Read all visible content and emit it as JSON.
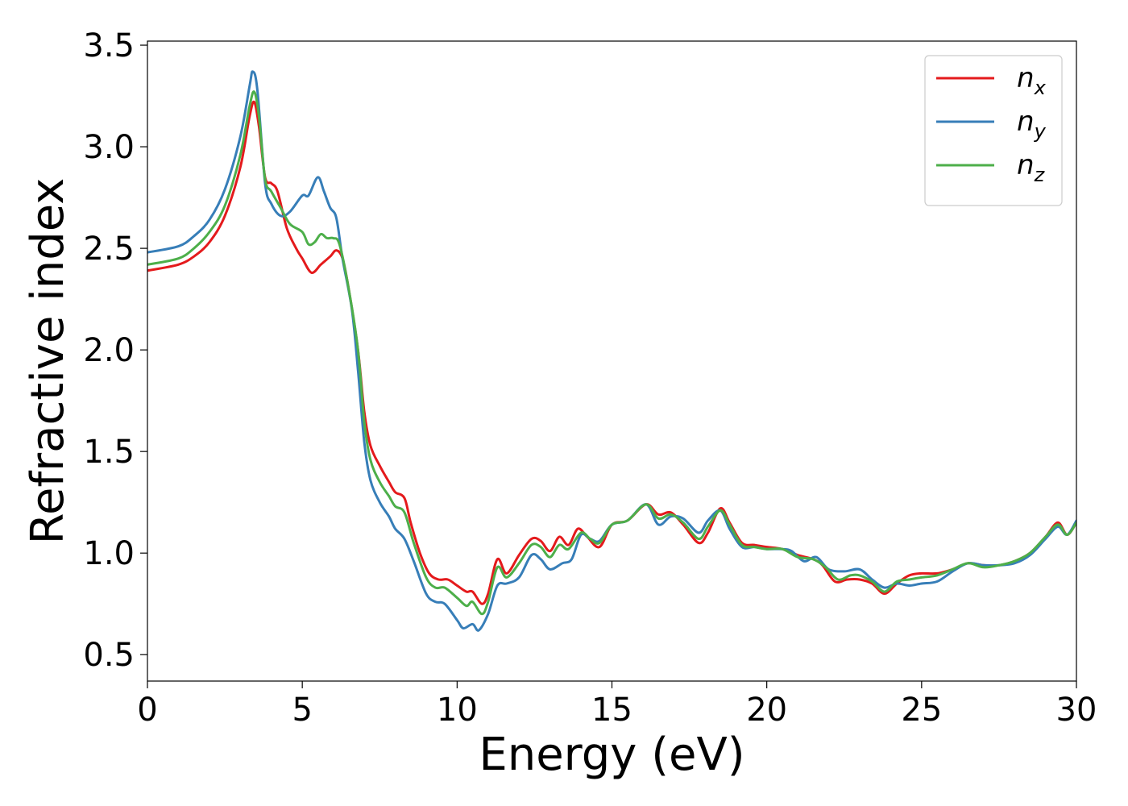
{
  "chart_data": {
    "type": "line",
    "title": "",
    "xlabel": "Energy (eV)",
    "ylabel": "Refractive index",
    "xlim": [
      0,
      30
    ],
    "ylim": [
      0.37,
      3.52
    ],
    "xticks": [
      0,
      5,
      10,
      15,
      20,
      25,
      30
    ],
    "yticks": [
      0.5,
      1.0,
      1.5,
      2.0,
      2.5,
      3.0,
      3.5
    ],
    "grid": false,
    "legend_position": "top-right",
    "series": [
      {
        "name": "n",
        "subscript": "x",
        "color": "#e41a1c",
        "points": [
          [
            0,
            2.39
          ],
          [
            1,
            2.42
          ],
          [
            1.5,
            2.46
          ],
          [
            2,
            2.53
          ],
          [
            2.5,
            2.66
          ],
          [
            3,
            2.9
          ],
          [
            3.3,
            3.15
          ],
          [
            3.45,
            3.22
          ],
          [
            3.6,
            3.1
          ],
          [
            3.8,
            2.85
          ],
          [
            4.0,
            2.82
          ],
          [
            4.2,
            2.78
          ],
          [
            4.5,
            2.6
          ],
          [
            4.8,
            2.5
          ],
          [
            5.0,
            2.45
          ],
          [
            5.3,
            2.38
          ],
          [
            5.6,
            2.42
          ],
          [
            5.9,
            2.46
          ],
          [
            6.1,
            2.49
          ],
          [
            6.3,
            2.45
          ],
          [
            6.5,
            2.3
          ],
          [
            6.8,
            2.0
          ],
          [
            7.0,
            1.7
          ],
          [
            7.2,
            1.53
          ],
          [
            7.5,
            1.43
          ],
          [
            7.8,
            1.35
          ],
          [
            8.0,
            1.3
          ],
          [
            8.3,
            1.27
          ],
          [
            8.5,
            1.15
          ],
          [
            8.8,
            1.0
          ],
          [
            9.1,
            0.9
          ],
          [
            9.4,
            0.87
          ],
          [
            9.7,
            0.87
          ],
          [
            10.0,
            0.84
          ],
          [
            10.3,
            0.81
          ],
          [
            10.5,
            0.81
          ],
          [
            10.8,
            0.75
          ],
          [
            11.0,
            0.8
          ],
          [
            11.3,
            0.97
          ],
          [
            11.6,
            0.9
          ],
          [
            12.0,
            0.99
          ],
          [
            12.4,
            1.07
          ],
          [
            12.7,
            1.06
          ],
          [
            13.0,
            1.01
          ],
          [
            13.3,
            1.08
          ],
          [
            13.6,
            1.04
          ],
          [
            13.9,
            1.12
          ],
          [
            14.2,
            1.08
          ],
          [
            14.6,
            1.03
          ],
          [
            15.0,
            1.14
          ],
          [
            15.5,
            1.16
          ],
          [
            16.1,
            1.24
          ],
          [
            16.5,
            1.19
          ],
          [
            16.9,
            1.2
          ],
          [
            17.3,
            1.14
          ],
          [
            17.8,
            1.05
          ],
          [
            18.1,
            1.1
          ],
          [
            18.5,
            1.22
          ],
          [
            18.8,
            1.15
          ],
          [
            19.2,
            1.05
          ],
          [
            19.6,
            1.04
          ],
          [
            20.0,
            1.03
          ],
          [
            20.5,
            1.02
          ],
          [
            21.0,
            0.99
          ],
          [
            21.5,
            0.97
          ],
          [
            21.8,
            0.94
          ],
          [
            22.2,
            0.86
          ],
          [
            22.6,
            0.87
          ],
          [
            23.0,
            0.87
          ],
          [
            23.4,
            0.85
          ],
          [
            23.8,
            0.8
          ],
          [
            24.2,
            0.85
          ],
          [
            24.6,
            0.89
          ],
          [
            25.0,
            0.9
          ],
          [
            25.5,
            0.9
          ],
          [
            26.0,
            0.92
          ],
          [
            26.5,
            0.95
          ],
          [
            27.0,
            0.94
          ],
          [
            27.5,
            0.94
          ],
          [
            28.0,
            0.96
          ],
          [
            28.5,
            1.0
          ],
          [
            29.0,
            1.08
          ],
          [
            29.4,
            1.15
          ],
          [
            29.7,
            1.09
          ],
          [
            30.0,
            1.15
          ]
        ]
      },
      {
        "name": "n",
        "subscript": "y",
        "color": "#377eb8",
        "points": [
          [
            0,
            2.48
          ],
          [
            1,
            2.51
          ],
          [
            1.5,
            2.56
          ],
          [
            2,
            2.64
          ],
          [
            2.5,
            2.79
          ],
          [
            3,
            3.05
          ],
          [
            3.3,
            3.3
          ],
          [
            3.4,
            3.37
          ],
          [
            3.55,
            3.28
          ],
          [
            3.8,
            2.82
          ],
          [
            4.0,
            2.72
          ],
          [
            4.3,
            2.66
          ],
          [
            4.6,
            2.68
          ],
          [
            5.0,
            2.76
          ],
          [
            5.2,
            2.76
          ],
          [
            5.5,
            2.85
          ],
          [
            5.7,
            2.78
          ],
          [
            5.9,
            2.7
          ],
          [
            6.1,
            2.65
          ],
          [
            6.3,
            2.45
          ],
          [
            6.6,
            2.2
          ],
          [
            6.8,
            1.9
          ],
          [
            7.0,
            1.55
          ],
          [
            7.2,
            1.36
          ],
          [
            7.5,
            1.25
          ],
          [
            7.8,
            1.18
          ],
          [
            8.0,
            1.12
          ],
          [
            8.3,
            1.07
          ],
          [
            8.6,
            0.96
          ],
          [
            9.0,
            0.8
          ],
          [
            9.3,
            0.76
          ],
          [
            9.6,
            0.75
          ],
          [
            10.0,
            0.67
          ],
          [
            10.2,
            0.63
          ],
          [
            10.5,
            0.65
          ],
          [
            10.7,
            0.62
          ],
          [
            11.0,
            0.7
          ],
          [
            11.3,
            0.84
          ],
          [
            11.6,
            0.85
          ],
          [
            12.0,
            0.88
          ],
          [
            12.4,
            0.99
          ],
          [
            12.7,
            0.97
          ],
          [
            13.0,
            0.92
          ],
          [
            13.4,
            0.95
          ],
          [
            13.7,
            0.97
          ],
          [
            14.0,
            1.09
          ],
          [
            14.3,
            1.07
          ],
          [
            14.6,
            1.06
          ],
          [
            15.0,
            1.14
          ],
          [
            15.5,
            1.16
          ],
          [
            16.1,
            1.24
          ],
          [
            16.5,
            1.14
          ],
          [
            16.9,
            1.18
          ],
          [
            17.3,
            1.17
          ],
          [
            17.8,
            1.1
          ],
          [
            18.1,
            1.16
          ],
          [
            18.5,
            1.21
          ],
          [
            18.8,
            1.12
          ],
          [
            19.2,
            1.03
          ],
          [
            19.6,
            1.03
          ],
          [
            20.0,
            1.02
          ],
          [
            20.5,
            1.02
          ],
          [
            20.8,
            1.01
          ],
          [
            21.2,
            0.96
          ],
          [
            21.6,
            0.98
          ],
          [
            22.0,
            0.92
          ],
          [
            22.5,
            0.91
          ],
          [
            23.0,
            0.92
          ],
          [
            23.4,
            0.87
          ],
          [
            23.8,
            0.83
          ],
          [
            24.2,
            0.85
          ],
          [
            24.6,
            0.84
          ],
          [
            25.0,
            0.85
          ],
          [
            25.5,
            0.86
          ],
          [
            26.0,
            0.91
          ],
          [
            26.5,
            0.95
          ],
          [
            27.0,
            0.94
          ],
          [
            27.5,
            0.94
          ],
          [
            28.0,
            0.95
          ],
          [
            28.5,
            0.99
          ],
          [
            29.0,
            1.07
          ],
          [
            29.4,
            1.13
          ],
          [
            29.7,
            1.09
          ],
          [
            30.0,
            1.16
          ]
        ]
      },
      {
        "name": "n",
        "subscript": "z",
        "color": "#4daf4a",
        "points": [
          [
            0,
            2.42
          ],
          [
            1,
            2.45
          ],
          [
            1.5,
            2.5
          ],
          [
            2,
            2.58
          ],
          [
            2.5,
            2.71
          ],
          [
            3,
            2.96
          ],
          [
            3.3,
            3.2
          ],
          [
            3.45,
            3.27
          ],
          [
            3.6,
            3.15
          ],
          [
            3.8,
            2.84
          ],
          [
            4.0,
            2.78
          ],
          [
            4.3,
            2.7
          ],
          [
            4.6,
            2.62
          ],
          [
            5.0,
            2.58
          ],
          [
            5.2,
            2.52
          ],
          [
            5.4,
            2.53
          ],
          [
            5.6,
            2.57
          ],
          [
            5.8,
            2.55
          ],
          [
            6.0,
            2.55
          ],
          [
            6.2,
            2.52
          ],
          [
            6.5,
            2.3
          ],
          [
            6.8,
            2.0
          ],
          [
            7.0,
            1.65
          ],
          [
            7.2,
            1.46
          ],
          [
            7.5,
            1.35
          ],
          [
            7.8,
            1.28
          ],
          [
            8.0,
            1.23
          ],
          [
            8.3,
            1.2
          ],
          [
            8.6,
            1.05
          ],
          [
            9.0,
            0.88
          ],
          [
            9.3,
            0.83
          ],
          [
            9.6,
            0.83
          ],
          [
            10.0,
            0.78
          ],
          [
            10.3,
            0.74
          ],
          [
            10.5,
            0.76
          ],
          [
            10.8,
            0.7
          ],
          [
            11.0,
            0.76
          ],
          [
            11.3,
            0.93
          ],
          [
            11.6,
            0.88
          ],
          [
            12.0,
            0.95
          ],
          [
            12.4,
            1.04
          ],
          [
            12.7,
            1.03
          ],
          [
            13.0,
            0.98
          ],
          [
            13.3,
            1.04
          ],
          [
            13.6,
            1.02
          ],
          [
            14.0,
            1.1
          ],
          [
            14.3,
            1.07
          ],
          [
            14.6,
            1.05
          ],
          [
            15.0,
            1.14
          ],
          [
            15.5,
            1.16
          ],
          [
            16.1,
            1.24
          ],
          [
            16.5,
            1.17
          ],
          [
            16.9,
            1.19
          ],
          [
            17.3,
            1.15
          ],
          [
            17.8,
            1.07
          ],
          [
            18.1,
            1.13
          ],
          [
            18.5,
            1.21
          ],
          [
            18.8,
            1.14
          ],
          [
            19.2,
            1.04
          ],
          [
            19.6,
            1.03
          ],
          [
            20.0,
            1.02
          ],
          [
            20.5,
            1.02
          ],
          [
            21.0,
            0.98
          ],
          [
            21.5,
            0.97
          ],
          [
            21.9,
            0.93
          ],
          [
            22.3,
            0.87
          ],
          [
            22.7,
            0.89
          ],
          [
            23.0,
            0.89
          ],
          [
            23.4,
            0.86
          ],
          [
            23.8,
            0.81
          ],
          [
            24.2,
            0.86
          ],
          [
            24.6,
            0.87
          ],
          [
            25.0,
            0.88
          ],
          [
            25.5,
            0.89
          ],
          [
            26.0,
            0.92
          ],
          [
            26.5,
            0.95
          ],
          [
            27.0,
            0.93
          ],
          [
            27.5,
            0.94
          ],
          [
            28.0,
            0.96
          ],
          [
            28.5,
            1.0
          ],
          [
            29.0,
            1.08
          ],
          [
            29.4,
            1.14
          ],
          [
            29.7,
            1.09
          ],
          [
            30.0,
            1.15
          ]
        ]
      }
    ]
  }
}
